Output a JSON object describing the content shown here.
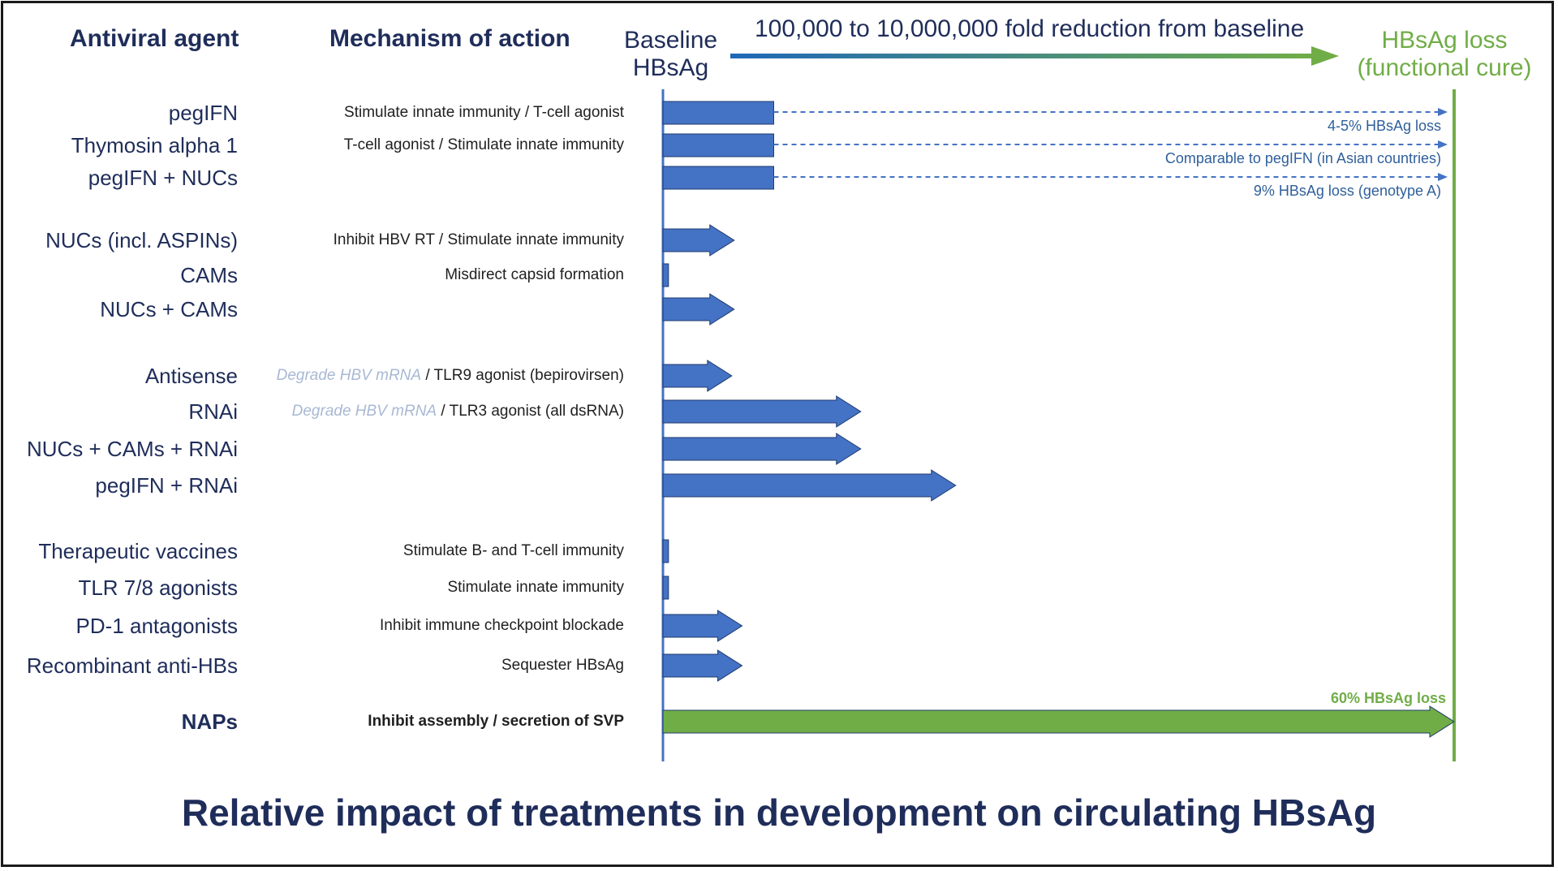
{
  "header": {
    "agent": "Antiviral agent",
    "mechanism": "Mechanism of action",
    "baseline": "Baseline HBsAg",
    "range": "100,000 to 10,000,000 fold reduction from baseline",
    "cure": "HBsAg loss (functional cure)"
  },
  "footer": "Relative impact of treatments in development on circulating HBsAg",
  "colors": {
    "navy": "#1f2d5a",
    "bar_blue": "#4472c4",
    "cure_green": "#70ad47",
    "note_blue": "#2f5f9a",
    "faded": "#a8b8d4"
  },
  "chart_data": {
    "type": "bar",
    "orientation": "horizontal",
    "value_scale": "relative fold reduction from baseline (0 = baseline HBsAg, 1 = HBsAg loss)",
    "rows": [
      {
        "agent": "pegIFN",
        "mechanism": "Stimulate innate immunity / T-cell agonist",
        "mechanism_faded": "",
        "value": 0.14,
        "arrow": false,
        "dashed_to_cure": true,
        "note": "4-5% HBsAg loss",
        "bold": false
      },
      {
        "agent": "Thymosin alpha 1",
        "mechanism": "T-cell agonist / Stimulate innate immunity",
        "mechanism_faded": "",
        "value": 0.14,
        "arrow": false,
        "dashed_to_cure": true,
        "note": "Comparable to pegIFN (in Asian countries)",
        "bold": false
      },
      {
        "agent": "pegIFN + NUCs",
        "mechanism": "",
        "mechanism_faded": "",
        "value": 0.14,
        "arrow": false,
        "dashed_to_cure": true,
        "note": "9% HBsAg loss (genotype A)",
        "bold": false
      },
      {
        "agent": "NUCs (incl. ASPINs)",
        "mechanism": "Inhibit HBV RT / Stimulate innate immunity",
        "mechanism_faded": "",
        "value": 0.09,
        "arrow": true,
        "dashed_to_cure": false,
        "note": "",
        "bold": false
      },
      {
        "agent": "CAMs",
        "mechanism": "Misdirect capsid formation",
        "mechanism_faded": "",
        "value": 0.007,
        "arrow": false,
        "dashed_to_cure": false,
        "note": "",
        "bold": false
      },
      {
        "agent": "NUCs + CAMs",
        "mechanism": "",
        "mechanism_faded": "",
        "value": 0.09,
        "arrow": true,
        "dashed_to_cure": false,
        "note": "",
        "bold": false
      },
      {
        "agent": "Antisense",
        "mechanism": " / TLR9 agonist (bepirovirsen)",
        "mechanism_faded": "Degrade HBV mRNA",
        "value": 0.087,
        "arrow": true,
        "dashed_to_cure": false,
        "note": "",
        "bold": false
      },
      {
        "agent": "RNAi",
        "mechanism": " / TLR3 agonist (all dsRNA)",
        "mechanism_faded": "Degrade HBV mRNA",
        "value": 0.25,
        "arrow": true,
        "dashed_to_cure": false,
        "note": "",
        "bold": false
      },
      {
        "agent": "NUCs + CAMs + RNAi",
        "mechanism": "",
        "mechanism_faded": "",
        "value": 0.25,
        "arrow": true,
        "dashed_to_cure": false,
        "note": "",
        "bold": false
      },
      {
        "agent": "pegIFN + RNAi",
        "mechanism": "",
        "mechanism_faded": "",
        "value": 0.37,
        "arrow": true,
        "dashed_to_cure": false,
        "note": "",
        "bold": false
      },
      {
        "agent": "Therapeutic vaccines",
        "mechanism": "Stimulate B- and T-cell immunity",
        "mechanism_faded": "",
        "value": 0.007,
        "arrow": false,
        "dashed_to_cure": false,
        "note": "",
        "bold": false
      },
      {
        "agent": "TLR 7/8 agonists",
        "mechanism": "Stimulate innate immunity",
        "mechanism_faded": "",
        "value": 0.007,
        "arrow": false,
        "dashed_to_cure": false,
        "note": "",
        "bold": false
      },
      {
        "agent": "PD-1 antagonists",
        "mechanism": "Inhibit immune checkpoint blockade",
        "mechanism_faded": "",
        "value": 0.1,
        "arrow": true,
        "dashed_to_cure": false,
        "note": "",
        "bold": false
      },
      {
        "agent": "Recombinant anti-HBs",
        "mechanism": "Sequester HBsAg",
        "mechanism_faded": "",
        "value": 0.1,
        "arrow": true,
        "dashed_to_cure": false,
        "note": "",
        "bold": false
      },
      {
        "agent": "NAPs",
        "mechanism": "Inhibit assembly / secretion of SVP",
        "mechanism_faded": "",
        "value": 1.0,
        "arrow": true,
        "dashed_to_cure": false,
        "note": "60% HBsAg loss",
        "bold": true
      }
    ]
  }
}
